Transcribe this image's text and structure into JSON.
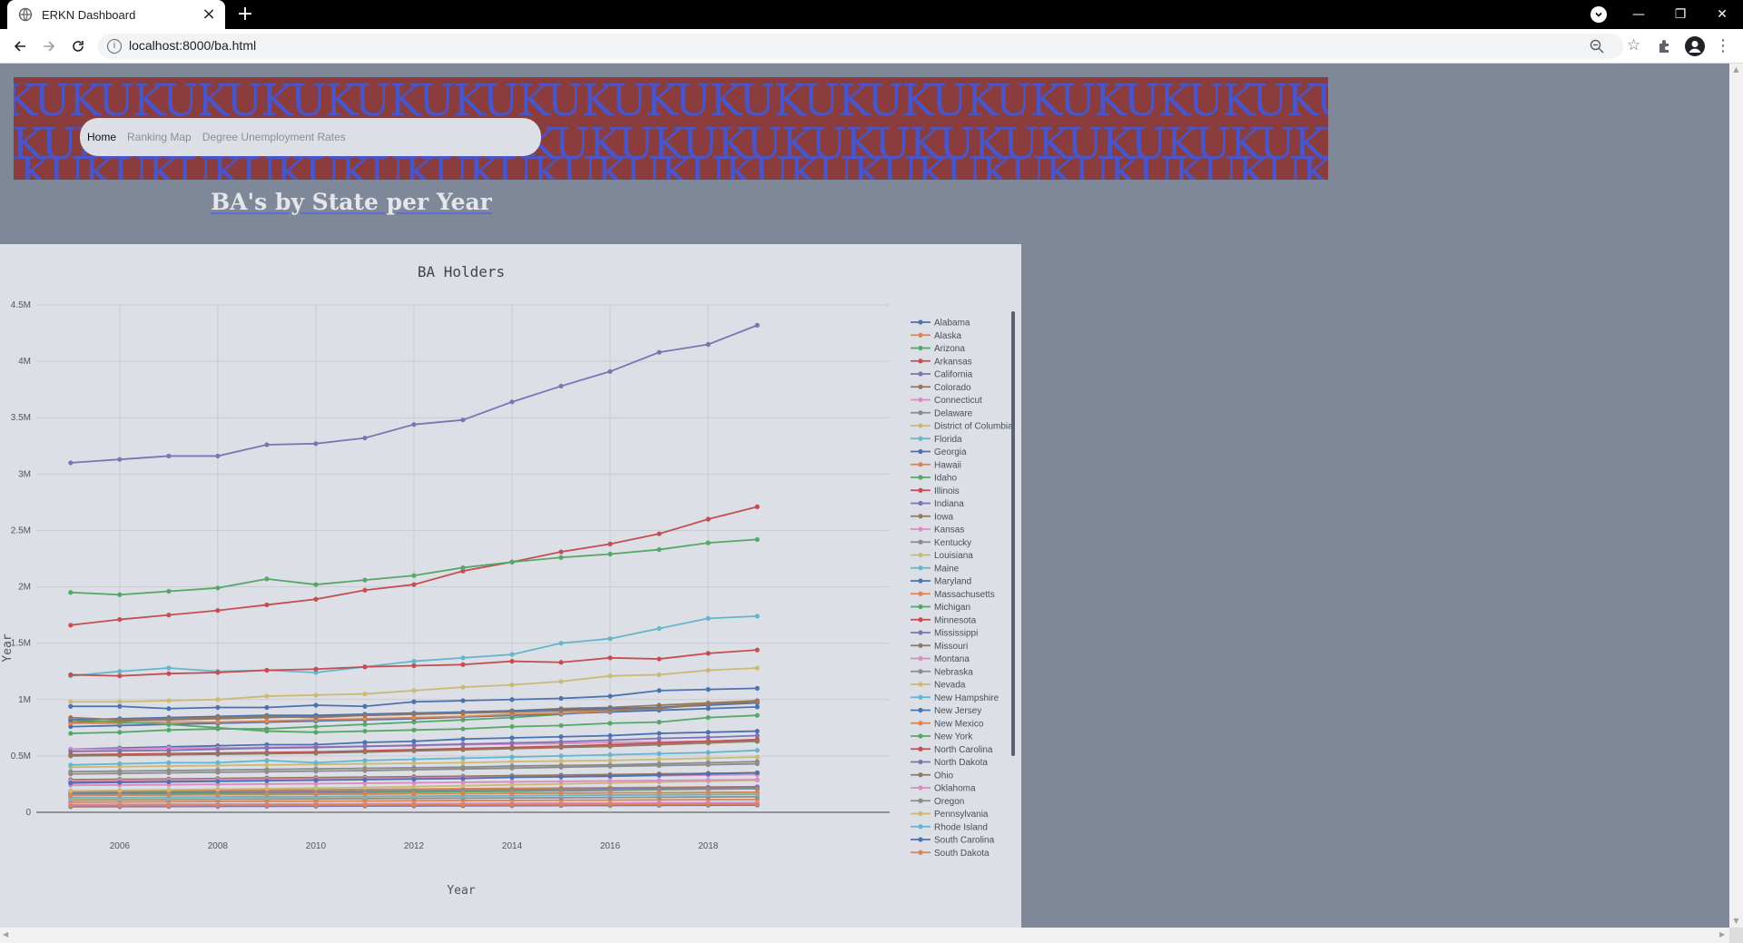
{
  "browser": {
    "tab_title": "ERKN Dashboard",
    "tab_close": "×",
    "new_tab": "+",
    "url": "localhost:8000/ba.html",
    "info_glyph": "i",
    "win_minimize": "—",
    "win_restore": "❐",
    "win_close": "✕",
    "icons": [
      "globe-icon",
      "back-arrow-icon",
      "forward-arrow-icon",
      "reload-icon",
      "info-icon",
      "zoom-icon",
      "star-icon",
      "puzzle-icon",
      "avatar-icon",
      "menu-dots-icon"
    ]
  },
  "banner": {
    "pattern_text": "KUKUKUKUKUKUKUKUKUKUKUKUKUKUKUKUKUKUKUKUKUKUKU",
    "background": "#8b3c3c",
    "pattern_color": "#4a55c8"
  },
  "nav": {
    "items": [
      {
        "label": "Home",
        "active": true
      },
      {
        "label": "Ranking Map",
        "active": false
      },
      {
        "label": "Degree Unemployment Rates",
        "active": false
      }
    ]
  },
  "page": {
    "title": "BA's by State per Year"
  },
  "chart_data": {
    "type": "line",
    "title": "BA Holders",
    "xlabel": "Year",
    "ylabel": "Year",
    "x": [
      2005,
      2006,
      2007,
      2008,
      2009,
      2010,
      2011,
      2012,
      2013,
      2014,
      2015,
      2016,
      2017,
      2018,
      2019
    ],
    "x_ticks": [
      "2006",
      "2008",
      "2010",
      "2012",
      "2014",
      "2016",
      "2018"
    ],
    "y_ticks": [
      "0",
      "0.5M",
      "1M",
      "1.5M",
      "2M",
      "2.5M",
      "3M",
      "3.5M",
      "4M",
      "4.5M"
    ],
    "ylim": [
      0,
      4500000
    ],
    "xlim": [
      2004.3,
      2021.7
    ],
    "grid": true,
    "legend_position": "right",
    "series": [
      {
        "name": "Alabama",
        "color": "#4c72b0",
        "values": [
          560000,
          570000,
          580000,
          590000,
          600000,
          600000,
          620000,
          630000,
          650000,
          660000,
          670000,
          680000,
          700000,
          710000,
          720000
        ]
      },
      {
        "name": "Alaska",
        "color": "#dd8452",
        "values": [
          90000,
          92000,
          94000,
          96000,
          98000,
          99000,
          100000,
          102000,
          104000,
          105000,
          107000,
          108000,
          110000,
          112000,
          113000
        ]
      },
      {
        "name": "Arizona",
        "color": "#55a868",
        "values": [
          700000,
          710000,
          730000,
          740000,
          740000,
          760000,
          780000,
          800000,
          820000,
          840000,
          870000,
          900000,
          930000,
          960000,
          990000
        ]
      },
      {
        "name": "Arkansas",
        "color": "#c44e52",
        "values": [
          270000,
          275000,
          280000,
          285000,
          290000,
          295000,
          300000,
          305000,
          310000,
          320000,
          325000,
          330000,
          340000,
          345000,
          350000
        ]
      },
      {
        "name": "California",
        "color": "#8172b3",
        "values": [
          3100000,
          3130000,
          3160000,
          3160000,
          3260000,
          3270000,
          3320000,
          3440000,
          3480000,
          3640000,
          3780000,
          3910000,
          4080000,
          4150000,
          4320000
        ]
      },
      {
        "name": "Colorado",
        "color": "#937860",
        "values": [
          800000,
          810000,
          820000,
          830000,
          840000,
          850000,
          860000,
          870000,
          880000,
          900000,
          920000,
          930000,
          950000,
          970000,
          990000
        ]
      },
      {
        "name": "Connecticut",
        "color": "#da8bc3",
        "values": [
          560000,
          560000,
          570000,
          570000,
          575000,
          580000,
          585000,
          590000,
          600000,
          605000,
          610000,
          620000,
          625000,
          630000,
          640000
        ]
      },
      {
        "name": "Delaware",
        "color": "#8c8c8c",
        "values": [
          110000,
          112000,
          114000,
          116000,
          118000,
          120000,
          122000,
          124000,
          126000,
          128000,
          130000,
          132000,
          134000,
          136000,
          138000
        ]
      },
      {
        "name": "District of Columbia",
        "color": "#ccb974",
        "values": [
          120000,
          122000,
          125000,
          128000,
          130000,
          133000,
          136000,
          140000,
          143000,
          146000,
          150000,
          153000,
          156000,
          160000,
          163000
        ]
      },
      {
        "name": "Florida",
        "color": "#64b5cd",
        "values": [
          1210000,
          1250000,
          1280000,
          1250000,
          1260000,
          1240000,
          1290000,
          1340000,
          1370000,
          1400000,
          1500000,
          1540000,
          1630000,
          1720000,
          1740000
        ]
      },
      {
        "name": "Georgia",
        "color": "#4c72b0",
        "values": [
          940000,
          940000,
          920000,
          930000,
          930000,
          950000,
          940000,
          980000,
          990000,
          1000000,
          1010000,
          1030000,
          1080000,
          1090000,
          1100000
        ]
      },
      {
        "name": "Hawaii",
        "color": "#dd8452",
        "values": [
          190000,
          192000,
          194000,
          196000,
          198000,
          200000,
          203000,
          206000,
          209000,
          212000,
          215000,
          218000,
          221000,
          224000,
          227000
        ]
      },
      {
        "name": "Idaho",
        "color": "#55a868",
        "values": [
          160000,
          162000,
          165000,
          168000,
          170000,
          173000,
          176000,
          180000,
          183000,
          186000,
          190000,
          195000,
          200000,
          205000,
          210000
        ]
      },
      {
        "name": "Illinois",
        "color": "#c44e52",
        "values": [
          1660000,
          1710000,
          1750000,
          1790000,
          1840000,
          1890000,
          1970000,
          2020000,
          2140000,
          2220000,
          2310000,
          2380000,
          2470000,
          2600000,
          2710000
        ]
      },
      {
        "name": "Indiana",
        "color": "#8172b3",
        "values": [
          540000,
          545000,
          550000,
          560000,
          570000,
          575000,
          585000,
          595000,
          605000,
          615000,
          625000,
          640000,
          655000,
          665000,
          680000
        ]
      },
      {
        "name": "Iowa",
        "color": "#937860",
        "values": [
          290000,
          293000,
          296000,
          300000,
          305000,
          308000,
          312000,
          316000,
          320000,
          325000,
          330000,
          335000,
          340000,
          345000,
          350000
        ]
      },
      {
        "name": "Kansas",
        "color": "#da8bc3",
        "values": [
          280000,
          283000,
          286000,
          290000,
          293000,
          296000,
          300000,
          304000,
          308000,
          312000,
          316000,
          320000,
          325000,
          330000,
          335000
        ]
      },
      {
        "name": "Kentucky",
        "color": "#8c8c8c",
        "values": [
          340000,
          345000,
          350000,
          355000,
          360000,
          365000,
          370000,
          378000,
          385000,
          392000,
          400000,
          408000,
          415000,
          422000,
          430000
        ]
      },
      {
        "name": "Louisiana",
        "color": "#ccb974",
        "values": [
          400000,
          405000,
          410000,
          415000,
          420000,
          425000,
          430000,
          435000,
          440000,
          450000,
          455000,
          460000,
          470000,
          480000,
          490000
        ]
      },
      {
        "name": "Maine",
        "color": "#64b5cd",
        "values": [
          130000,
          132000,
          134000,
          136000,
          138000,
          140000,
          142000,
          144000,
          146000,
          148000,
          150000,
          152000,
          154000,
          156000,
          158000
        ]
      },
      {
        "name": "Maryland",
        "color": "#4c72b0",
        "values": [
          760000,
          770000,
          780000,
          790000,
          800000,
          810000,
          820000,
          830000,
          845000,
          860000,
          875000,
          890000,
          905000,
          920000,
          935000
        ]
      },
      {
        "name": "Massachusetts",
        "color": "#dd8452",
        "values": [
          790000,
          790000,
          800000,
          800000,
          810000,
          820000,
          830000,
          840000,
          850000,
          870000,
          880000,
          900000,
          930000,
          960000,
          980000
        ]
      },
      {
        "name": "Michigan",
        "color": "#55a868",
        "values": [
          820000,
          800000,
          780000,
          750000,
          720000,
          710000,
          720000,
          730000,
          740000,
          760000,
          770000,
          790000,
          800000,
          840000,
          860000
        ]
      },
      {
        "name": "Minnesota",
        "color": "#c44e52",
        "values": [
          510000,
          515000,
          520000,
          525000,
          530000,
          535000,
          545000,
          555000,
          565000,
          575000,
          585000,
          600000,
          615000,
          630000,
          645000
        ]
      },
      {
        "name": "Mississippi",
        "color": "#8172b3",
        "values": [
          170000,
          172000,
          175000,
          178000,
          181000,
          184000,
          188000,
          192000,
          196000,
          200000,
          205000,
          210000,
          215000,
          220000,
          225000
        ]
      },
      {
        "name": "Missouri",
        "color": "#937860",
        "values": [
          500000,
          505000,
          510000,
          515000,
          520000,
          525000,
          535000,
          545000,
          555000,
          565000,
          575000,
          585000,
          600000,
          615000,
          630000
        ]
      },
      {
        "name": "Montana",
        "color": "#da8bc3",
        "values": [
          70000,
          71000,
          72000,
          73000,
          74000,
          75000,
          76000,
          77000,
          78000,
          80000,
          81000,
          82000,
          84000,
          85000,
          86000
        ]
      },
      {
        "name": "Nebraska",
        "color": "#8c8c8c",
        "values": [
          180000,
          182000,
          184000,
          186000,
          188000,
          190000,
          192000,
          194000,
          196000,
          198000,
          200000,
          202000,
          204000,
          206000,
          208000
        ]
      },
      {
        "name": "Nevada",
        "color": "#ccb974",
        "values": [
          190000,
          195000,
          200000,
          205000,
          210000,
          215000,
          220000,
          228000,
          236000,
          244000,
          252000,
          260000,
          268000,
          276000,
          285000
        ]
      },
      {
        "name": "New Hampshire",
        "color": "#64b5cd",
        "values": [
          150000,
          152000,
          154000,
          156000,
          158000,
          160000,
          162000,
          164000,
          166000,
          168000,
          170000,
          172000,
          174000,
          176000,
          178000
        ]
      },
      {
        "name": "New Jersey",
        "color": "#4c72b0",
        "values": [
          820000,
          830000,
          840000,
          850000,
          860000,
          860000,
          870000,
          880000,
          890000,
          900000,
          910000,
          920000,
          930000,
          950000,
          970000
        ]
      },
      {
        "name": "New Mexico",
        "color": "#dd8452",
        "values": [
          150000,
          152000,
          154000,
          156000,
          158000,
          160000,
          162000,
          164000,
          166000,
          168000,
          170000,
          172000,
          174000,
          176000,
          178000
        ]
      },
      {
        "name": "New York",
        "color": "#55a868",
        "values": [
          1950000,
          1930000,
          1960000,
          1990000,
          2070000,
          2020000,
          2060000,
          2100000,
          2170000,
          2220000,
          2260000,
          2290000,
          2330000,
          2390000,
          2420000
        ]
      },
      {
        "name": "North Carolina",
        "color": "#c44e52",
        "values": [
          1220000,
          1210000,
          1230000,
          1240000,
          1260000,
          1270000,
          1290000,
          1300000,
          1310000,
          1340000,
          1330000,
          1370000,
          1360000,
          1410000,
          1440000
        ]
      },
      {
        "name": "North Dakota",
        "color": "#8172b3",
        "values": [
          50000,
          51000,
          52000,
          53000,
          54000,
          55000,
          56000,
          57000,
          58000,
          59000,
          60000,
          61000,
          62000,
          63000,
          64000
        ]
      },
      {
        "name": "Ohio",
        "color": "#937860",
        "values": [
          840000,
          820000,
          830000,
          840000,
          850000,
          840000,
          860000,
          870000,
          880000,
          890000,
          900000,
          910000,
          920000,
          960000,
          980000
        ]
      },
      {
        "name": "Oklahoma",
        "color": "#da8bc3",
        "values": [
          240000,
          242000,
          245000,
          248000,
          251000,
          254000,
          258000,
          262000,
          266000,
          270000,
          274000,
          278000,
          282000,
          286000,
          290000
        ]
      },
      {
        "name": "Oregon",
        "color": "#8c8c8c",
        "values": [
          360000,
          365000,
          370000,
          375000,
          380000,
          385000,
          390000,
          395000,
          400000,
          410000,
          415000,
          420000,
          430000,
          440000,
          450000
        ]
      },
      {
        "name": "Pennsylvania",
        "color": "#ccb974",
        "values": [
          980000,
          980000,
          990000,
          1000000,
          1030000,
          1040000,
          1050000,
          1080000,
          1110000,
          1130000,
          1160000,
          1210000,
          1220000,
          1260000,
          1280000
        ]
      },
      {
        "name": "Rhode Island",
        "color": "#64b5cd",
        "values": [
          420000,
          430000,
          440000,
          440000,
          460000,
          440000,
          460000,
          470000,
          480000,
          490000,
          500000,
          510000,
          520000,
          530000,
          550000
        ]
      },
      {
        "name": "South Carolina",
        "color": "#4c72b0",
        "values": [
          260000,
          265000,
          270000,
          275000,
          280000,
          285000,
          290000,
          295000,
          300000,
          310000,
          315000,
          320000,
          330000,
          340000,
          350000
        ]
      },
      {
        "name": "South Dakota",
        "color": "#dd8452",
        "values": [
          60000,
          61000,
          62000,
          63000,
          64000,
          65000,
          66000,
          67000,
          68000,
          69000,
          70000,
          71000,
          72000,
          73000,
          74000
        ]
      }
    ]
  }
}
